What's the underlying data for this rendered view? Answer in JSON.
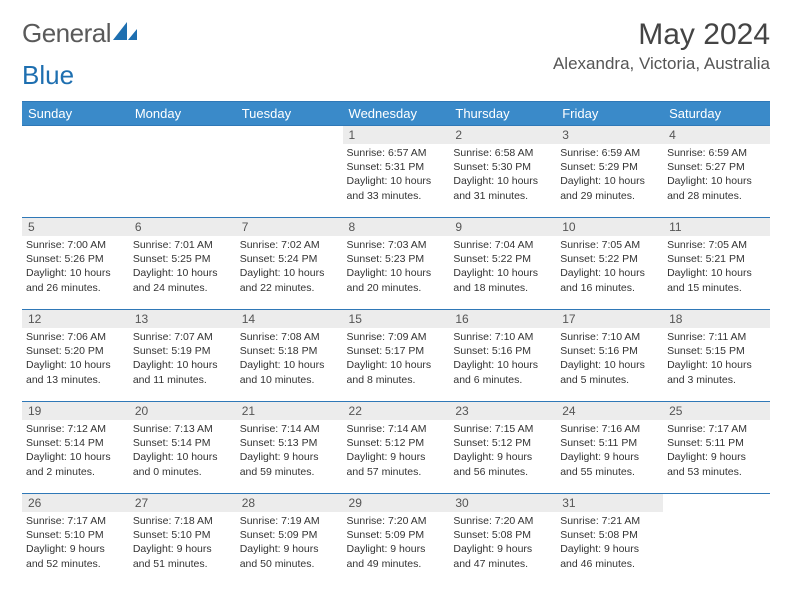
{
  "brand": {
    "word1": "General",
    "word2": "Blue"
  },
  "title": "May 2024",
  "location": "Alexandra, Victoria, Australia",
  "colors": {
    "header_bg": "#3a8ac9",
    "header_text": "#ffffff",
    "rule": "#2f78b7",
    "daynum_bg": "#ececec",
    "logo_gray": "#5a5a5a",
    "logo_blue": "#1e6fb0"
  },
  "weekdays": [
    "Sunday",
    "Monday",
    "Tuesday",
    "Wednesday",
    "Thursday",
    "Friday",
    "Saturday"
  ],
  "weeks": [
    [
      null,
      null,
      null,
      {
        "n": "1",
        "sr": "6:57 AM",
        "ss": "5:31 PM",
        "dl": "10 hours and 33 minutes."
      },
      {
        "n": "2",
        "sr": "6:58 AM",
        "ss": "5:30 PM",
        "dl": "10 hours and 31 minutes."
      },
      {
        "n": "3",
        "sr": "6:59 AM",
        "ss": "5:29 PM",
        "dl": "10 hours and 29 minutes."
      },
      {
        "n": "4",
        "sr": "6:59 AM",
        "ss": "5:27 PM",
        "dl": "10 hours and 28 minutes."
      }
    ],
    [
      {
        "n": "5",
        "sr": "7:00 AM",
        "ss": "5:26 PM",
        "dl": "10 hours and 26 minutes."
      },
      {
        "n": "6",
        "sr": "7:01 AM",
        "ss": "5:25 PM",
        "dl": "10 hours and 24 minutes."
      },
      {
        "n": "7",
        "sr": "7:02 AM",
        "ss": "5:24 PM",
        "dl": "10 hours and 22 minutes."
      },
      {
        "n": "8",
        "sr": "7:03 AM",
        "ss": "5:23 PM",
        "dl": "10 hours and 20 minutes."
      },
      {
        "n": "9",
        "sr": "7:04 AM",
        "ss": "5:22 PM",
        "dl": "10 hours and 18 minutes."
      },
      {
        "n": "10",
        "sr": "7:05 AM",
        "ss": "5:22 PM",
        "dl": "10 hours and 16 minutes."
      },
      {
        "n": "11",
        "sr": "7:05 AM",
        "ss": "5:21 PM",
        "dl": "10 hours and 15 minutes."
      }
    ],
    [
      {
        "n": "12",
        "sr": "7:06 AM",
        "ss": "5:20 PM",
        "dl": "10 hours and 13 minutes."
      },
      {
        "n": "13",
        "sr": "7:07 AM",
        "ss": "5:19 PM",
        "dl": "10 hours and 11 minutes."
      },
      {
        "n": "14",
        "sr": "7:08 AM",
        "ss": "5:18 PM",
        "dl": "10 hours and 10 minutes."
      },
      {
        "n": "15",
        "sr": "7:09 AM",
        "ss": "5:17 PM",
        "dl": "10 hours and 8 minutes."
      },
      {
        "n": "16",
        "sr": "7:10 AM",
        "ss": "5:16 PM",
        "dl": "10 hours and 6 minutes."
      },
      {
        "n": "17",
        "sr": "7:10 AM",
        "ss": "5:16 PM",
        "dl": "10 hours and 5 minutes."
      },
      {
        "n": "18",
        "sr": "7:11 AM",
        "ss": "5:15 PM",
        "dl": "10 hours and 3 minutes."
      }
    ],
    [
      {
        "n": "19",
        "sr": "7:12 AM",
        "ss": "5:14 PM",
        "dl": "10 hours and 2 minutes."
      },
      {
        "n": "20",
        "sr": "7:13 AM",
        "ss": "5:14 PM",
        "dl": "10 hours and 0 minutes."
      },
      {
        "n": "21",
        "sr": "7:14 AM",
        "ss": "5:13 PM",
        "dl": "9 hours and 59 minutes."
      },
      {
        "n": "22",
        "sr": "7:14 AM",
        "ss": "5:12 PM",
        "dl": "9 hours and 57 minutes."
      },
      {
        "n": "23",
        "sr": "7:15 AM",
        "ss": "5:12 PM",
        "dl": "9 hours and 56 minutes."
      },
      {
        "n": "24",
        "sr": "7:16 AM",
        "ss": "5:11 PM",
        "dl": "9 hours and 55 minutes."
      },
      {
        "n": "25",
        "sr": "7:17 AM",
        "ss": "5:11 PM",
        "dl": "9 hours and 53 minutes."
      }
    ],
    [
      {
        "n": "26",
        "sr": "7:17 AM",
        "ss": "5:10 PM",
        "dl": "9 hours and 52 minutes."
      },
      {
        "n": "27",
        "sr": "7:18 AM",
        "ss": "5:10 PM",
        "dl": "9 hours and 51 minutes."
      },
      {
        "n": "28",
        "sr": "7:19 AM",
        "ss": "5:09 PM",
        "dl": "9 hours and 50 minutes."
      },
      {
        "n": "29",
        "sr": "7:20 AM",
        "ss": "5:09 PM",
        "dl": "9 hours and 49 minutes."
      },
      {
        "n": "30",
        "sr": "7:20 AM",
        "ss": "5:08 PM",
        "dl": "9 hours and 47 minutes."
      },
      {
        "n": "31",
        "sr": "7:21 AM",
        "ss": "5:08 PM",
        "dl": "9 hours and 46 minutes."
      },
      null
    ]
  ],
  "labels": {
    "sunrise": "Sunrise: ",
    "sunset": "Sunset: ",
    "daylight": "Daylight: "
  }
}
